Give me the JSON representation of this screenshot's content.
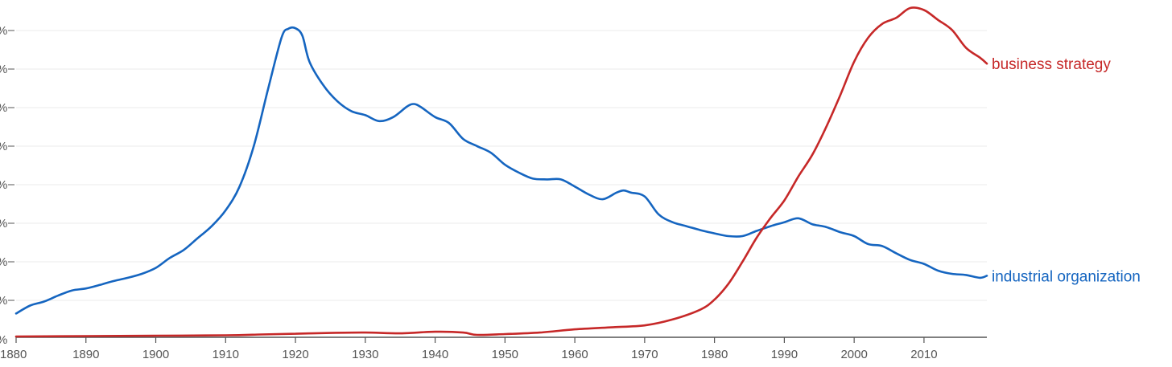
{
  "chart_data": {
    "type": "line",
    "title": "",
    "xlabel": "",
    "ylabel": "",
    "xlim": [
      1880,
      2019
    ],
    "ylim": [
      0,
      8.3
    ],
    "grid": true,
    "x_ticks": [
      1880,
      1890,
      1900,
      1910,
      1920,
      1930,
      1940,
      1950,
      1960,
      1970,
      1980,
      1990,
      2000,
      2010
    ],
    "y_tick_labels": [
      "%",
      "%",
      "%",
      "%",
      "%",
      "%",
      "%",
      "%",
      "%"
    ],
    "series": [
      {
        "name": "industrial organization",
        "color": "#1565c0",
        "x": [
          1880,
          1882,
          1884,
          1886,
          1888,
          1890,
          1892,
          1894,
          1896,
          1898,
          1900,
          1902,
          1904,
          1906,
          1908,
          1910,
          1912,
          1914,
          1916,
          1918,
          1919,
          1920,
          1921,
          1922,
          1924,
          1926,
          1928,
          1930,
          1932,
          1934,
          1936,
          1937,
          1938,
          1940,
          1942,
          1944,
          1946,
          1948,
          1950,
          1952,
          1954,
          1956,
          1958,
          1960,
          1962,
          1964,
          1966,
          1967,
          1968,
          1970,
          1972,
          1974,
          1976,
          1978,
          1980,
          1982,
          1984,
          1986,
          1988,
          1990,
          1992,
          1994,
          1996,
          1998,
          2000,
          2002,
          2004,
          2006,
          2008,
          2010,
          2012,
          2014,
          2016,
          2018,
          2019
        ],
        "values": [
          0.6,
          0.8,
          0.9,
          1.05,
          1.18,
          1.23,
          1.32,
          1.42,
          1.5,
          1.6,
          1.75,
          2.0,
          2.2,
          2.5,
          2.8,
          3.2,
          3.8,
          4.8,
          6.2,
          7.55,
          7.78,
          7.79,
          7.6,
          6.95,
          6.35,
          5.95,
          5.7,
          5.6,
          5.45,
          5.55,
          5.82,
          5.88,
          5.8,
          5.55,
          5.4,
          5.0,
          4.82,
          4.65,
          4.35,
          4.15,
          4.0,
          3.98,
          3.98,
          3.8,
          3.6,
          3.48,
          3.65,
          3.7,
          3.65,
          3.55,
          3.1,
          2.9,
          2.8,
          2.7,
          2.62,
          2.55,
          2.55,
          2.68,
          2.8,
          2.9,
          3.0,
          2.85,
          2.78,
          2.65,
          2.55,
          2.35,
          2.3,
          2.12,
          1.95,
          1.85,
          1.68,
          1.6,
          1.57,
          1.5,
          1.55
        ]
      },
      {
        "name": "business strategy",
        "color": "#c62828",
        "x": [
          1880,
          1890,
          1900,
          1910,
          1915,
          1920,
          1925,
          1930,
          1935,
          1940,
          1944,
          1946,
          1950,
          1955,
          1960,
          1965,
          1970,
          1974,
          1978,
          1980,
          1982,
          1984,
          1986,
          1988,
          1990,
          1992,
          1994,
          1996,
          1998,
          2000,
          2002,
          2004,
          2006,
          2008,
          2010,
          2012,
          2014,
          2016,
          2018,
          2019
        ],
        "values": [
          0.02,
          0.03,
          0.04,
          0.05,
          0.07,
          0.09,
          0.11,
          0.12,
          0.1,
          0.14,
          0.12,
          0.06,
          0.08,
          0.12,
          0.2,
          0.25,
          0.3,
          0.45,
          0.7,
          0.95,
          1.35,
          1.9,
          2.5,
          3.0,
          3.45,
          4.05,
          4.6,
          5.3,
          6.1,
          6.95,
          7.55,
          7.9,
          8.05,
          8.3,
          8.25,
          8.0,
          7.75,
          7.3,
          7.05,
          6.9
        ]
      }
    ]
  }
}
